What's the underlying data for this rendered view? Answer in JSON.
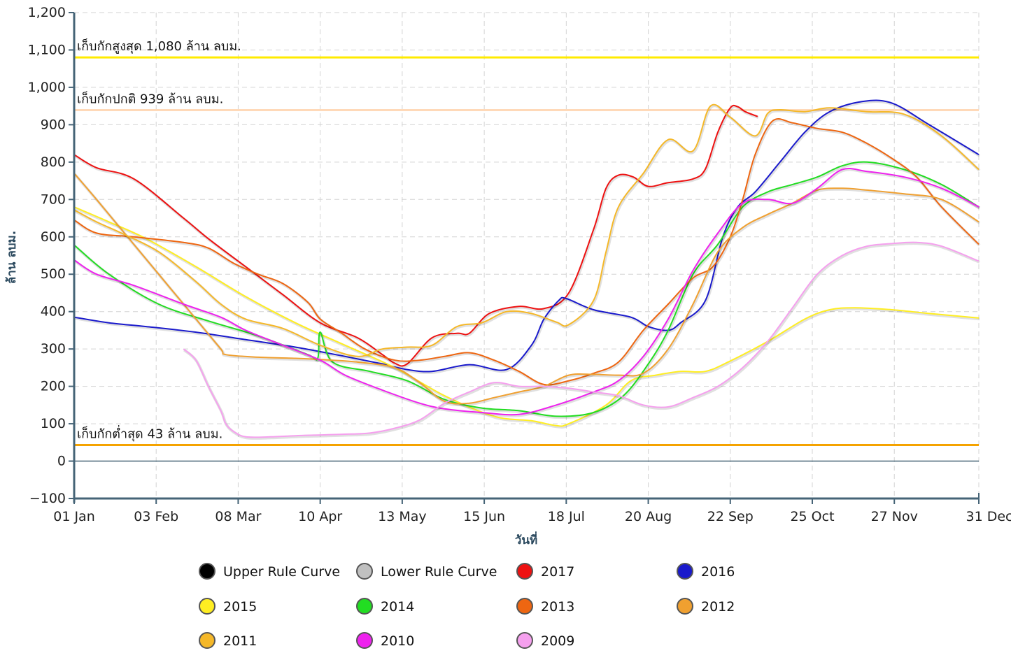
{
  "chart_data": {
    "type": "line",
    "xlabel": "วันที่",
    "ylabel": "ล้าน ลบม.",
    "ylim": [
      -100,
      1200
    ],
    "yticks": [
      -100,
      0,
      100,
      200,
      300,
      400,
      500,
      600,
      700,
      800,
      900,
      1000,
      1100,
      1200
    ],
    "ytick_labels": [
      "−100",
      "0",
      "100",
      "200",
      "300",
      "400",
      "500",
      "600",
      "700",
      "800",
      "900",
      "1,000",
      "1,100",
      "1,200"
    ],
    "xlim": [
      1,
      365
    ],
    "xticks": [
      1,
      34,
      67,
      100,
      133,
      166,
      199,
      232,
      265,
      298,
      331,
      365
    ],
    "xtick_labels": [
      "01 Jan",
      "03 Feb",
      "08 Mar",
      "10 Apr",
      "13 May",
      "15 Jun",
      "18 Jul",
      "20 Aug",
      "22 Sep",
      "25 Oct",
      "27 Nov",
      "31 Dec"
    ],
    "grid": true,
    "legend_position": "bottom",
    "reference_lines": [
      {
        "label": "เก็บกักสูงสุด 1,080 ล้าน ลบม.",
        "value": 1080,
        "color": "#ffeb00"
      },
      {
        "label": "เก็บกักปกติ 939 ล้าน ลบม.",
        "value": 939,
        "color": "#ffd9b8"
      },
      {
        "label": "เก็บกักต่ำสุด 43 ล้าน ลบม.",
        "value": 43,
        "color": "#f5a300"
      }
    ],
    "series": [
      {
        "name": "Upper Rule Curve",
        "color": "#000000",
        "x": [],
        "y": []
      },
      {
        "name": "Lower Rule Curve",
        "color": "#c0c0c0",
        "x": [],
        "y": []
      },
      {
        "name": "2017",
        "color": "#ee1111",
        "x": [
          1,
          10,
          25,
          45,
          55,
          70,
          85,
          100,
          115,
          125,
          130,
          135,
          145,
          155,
          160,
          168,
          180,
          190,
          200,
          210,
          215,
          220,
          226,
          232,
          240,
          250,
          255,
          260,
          265,
          268,
          271,
          276
        ],
        "y": [
          820,
          785,
          755,
          650,
          595,
          520,
          445,
          370,
          330,
          285,
          262,
          260,
          330,
          342,
          342,
          395,
          414,
          408,
          450,
          620,
          730,
          765,
          760,
          735,
          745,
          755,
          782,
          880,
          945,
          948,
          935,
          922
        ]
      },
      {
        "name": "2016",
        "color": "#1a1acc",
        "x": [
          1,
          15,
          30,
          50,
          70,
          90,
          110,
          125,
          135,
          145,
          160,
          175,
          185,
          190,
          196,
          199,
          210,
          225,
          232,
          240,
          245,
          255,
          262,
          268,
          275,
          285,
          295,
          305,
          318,
          330,
          345,
          365
        ],
        "y": [
          385,
          370,
          360,
          345,
          325,
          305,
          280,
          260,
          245,
          240,
          258,
          245,
          310,
          380,
          430,
          435,
          405,
          385,
          360,
          350,
          370,
          430,
          600,
          680,
          720,
          800,
          880,
          935,
          962,
          958,
          900,
          820
        ]
      },
      {
        "name": "2015",
        "color": "#ffee22",
        "x": [
          1,
          15,
          30,
          50,
          70,
          90,
          110,
          130,
          150,
          170,
          185,
          195,
          200,
          215,
          225,
          235,
          245,
          255,
          265,
          280,
          295,
          305,
          315,
          330,
          345,
          365
        ],
        "y": [
          680,
          640,
          595,
          520,
          440,
          370,
          310,
          250,
          175,
          120,
          108,
          95,
          100,
          150,
          215,
          230,
          240,
          240,
          268,
          320,
          380,
          405,
          410,
          405,
          395,
          383
        ]
      },
      {
        "name": "2014",
        "color": "#22dd22",
        "x": [
          1,
          15,
          35,
          55,
          75,
          95,
          99,
          100,
          105,
          120,
          135,
          150,
          165,
          180,
          195,
          210,
          222,
          232,
          240,
          250,
          260,
          270,
          280,
          290,
          300,
          310,
          320,
          335,
          350,
          365
        ],
        "y": [
          578,
          500,
          420,
          375,
          335,
          285,
          275,
          345,
          265,
          240,
          215,
          165,
          142,
          135,
          120,
          130,
          175,
          260,
          350,
          500,
          580,
          680,
          720,
          740,
          760,
          790,
          800,
          780,
          740,
          680
        ]
      },
      {
        "name": "2013",
        "color": "#ee6611",
        "x": [
          1,
          10,
          25,
          45,
          55,
          65,
          75,
          85,
          95,
          100,
          108,
          118,
          130,
          140,
          150,
          160,
          170,
          180,
          190,
          200,
          210,
          220,
          230,
          240,
          250,
          258,
          265,
          270,
          275,
          282,
          290,
          300,
          310,
          320,
          330,
          340,
          350,
          365
        ],
        "y": [
          645,
          610,
          600,
          585,
          570,
          530,
          500,
          475,
          425,
          380,
          345,
          300,
          270,
          270,
          280,
          290,
          270,
          240,
          205,
          215,
          235,
          265,
          350,
          420,
          490,
          520,
          600,
          700,
          820,
          910,
          905,
          890,
          880,
          850,
          810,
          760,
          680,
          580
        ]
      },
      {
        "name": "2012",
        "color": "#f0a030",
        "x": [
          1,
          10,
          20,
          35,
          50,
          60,
          62,
          75,
          90,
          105,
          115,
          130,
          140,
          150,
          160,
          170,
          180,
          190,
          200,
          210,
          220,
          230,
          240,
          250,
          260,
          270,
          280,
          290,
          300,
          310,
          320,
          335,
          350,
          365
        ],
        "y": [
          770,
          700,
          620,
          500,
          380,
          300,
          285,
          278,
          275,
          270,
          265,
          250,
          210,
          160,
          155,
          170,
          185,
          200,
          230,
          232,
          230,
          235,
          300,
          420,
          560,
          625,
          660,
          690,
          725,
          730,
          725,
          715,
          700,
          640
        ]
      },
      {
        "name": "2011",
        "color": "#f5b829",
        "x": [
          1,
          10,
          20,
          35,
          50,
          60,
          70,
          85,
          100,
          115,
          125,
          135,
          145,
          155,
          165,
          175,
          185,
          195,
          200,
          210,
          215,
          220,
          230,
          240,
          250,
          257,
          265,
          275,
          280,
          285,
          295,
          305,
          320,
          335,
          350,
          365
        ],
        "y": [
          672,
          640,
          610,
          560,
          480,
          420,
          380,
          355,
          310,
          280,
          300,
          305,
          310,
          360,
          370,
          400,
          395,
          372,
          365,
          430,
          560,
          680,
          770,
          860,
          830,
          950,
          920,
          870,
          930,
          940,
          935,
          945,
          935,
          928,
          870,
          780
        ]
      },
      {
        "name": "2010",
        "color": "#ee22ee",
        "x": [
          1,
          10,
          25,
          45,
          60,
          70,
          85,
          100,
          110,
          125,
          140,
          150,
          165,
          180,
          195,
          210,
          220,
          230,
          240,
          250,
          260,
          270,
          280,
          290,
          300,
          310,
          320,
          335,
          350,
          365
        ],
        "y": [
          538,
          500,
          470,
          420,
          385,
          350,
          310,
          270,
          230,
          190,
          155,
          140,
          130,
          125,
          150,
          185,
          215,
          280,
          380,
          510,
          610,
          690,
          700,
          690,
          730,
          780,
          775,
          760,
          730,
          680
        ]
      },
      {
        "name": "2009",
        "color": "#f5a0ee",
        "x": [
          45,
          50,
          55,
          60,
          62,
          65,
          70,
          80,
          90,
          100,
          110,
          120,
          130,
          140,
          150,
          160,
          170,
          180,
          190,
          200,
          210,
          220,
          230,
          240,
          250,
          260,
          270,
          280,
          290,
          300,
          310,
          320,
          330,
          340,
          350,
          365
        ],
        "y": [
          300,
          270,
          200,
          135,
          100,
          80,
          65,
          65,
          68,
          70,
          72,
          75,
          88,
          110,
          155,
          185,
          210,
          200,
          200,
          195,
          185,
          175,
          150,
          145,
          170,
          200,
          250,
          320,
          410,
          500,
          550,
          575,
          582,
          585,
          575,
          535
        ]
      }
    ]
  }
}
